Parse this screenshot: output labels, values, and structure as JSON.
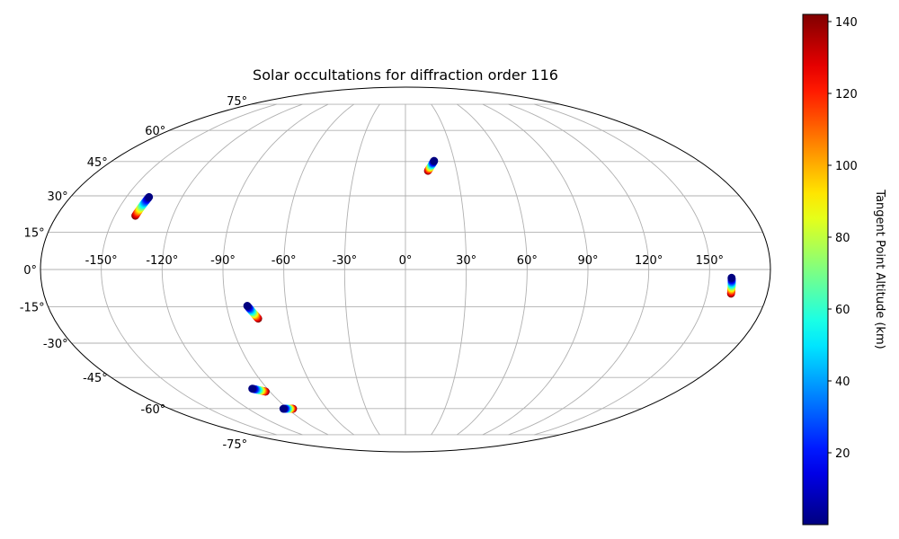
{
  "chart_data": {
    "type": "scatter",
    "projection": "mollweide",
    "title": "Solar occultations for diffraction order 116",
    "grid": true,
    "lon_ticks": [
      -150,
      -120,
      -90,
      -60,
      -30,
      0,
      30,
      60,
      90,
      120,
      150
    ],
    "lon_tick_labels": [
      "-150°",
      "-120°",
      "-90°",
      "-60°",
      "-30°",
      "0°",
      "30°",
      "60°",
      "90°",
      "120°",
      "150°"
    ],
    "lat_ticks": [
      -75,
      -60,
      -45,
      -30,
      -15,
      0,
      15,
      30,
      45,
      60,
      75
    ],
    "lat_tick_labels": [
      "-75°",
      "-60°",
      "-45°",
      "-30°",
      "-15°",
      "0°",
      "15°",
      "30°",
      "45°",
      "60°",
      "75°"
    ],
    "colorbar": {
      "label": "Tangent Point Altitude (km)",
      "colormap": "jet",
      "range": [
        0,
        142
      ],
      "ticks": [
        20,
        40,
        60,
        80,
        100,
        120,
        140
      ],
      "tick_labels": [
        "20",
        "40",
        "60",
        "80",
        "100",
        "120",
        "140"
      ],
      "placement": "right"
    },
    "tracks": [
      {
        "start": {
          "lon": -137.8,
          "lat": 29.5
        },
        "end": {
          "lon": -139.4,
          "lat": 21.7
        },
        "altitude_range": [
          0,
          142
        ]
      },
      {
        "start": {
          "lon": 17.6,
          "lat": 45.3
        },
        "end": {
          "lon": 13.2,
          "lat": 40.8
        },
        "altitude_range": [
          0,
          142
        ]
      },
      {
        "start": {
          "lon": -79.6,
          "lat": -14.6
        },
        "end": {
          "lon": -75.4,
          "lat": -19.8
        },
        "altitude_range": [
          0,
          142
        ]
      },
      {
        "start": {
          "lon": 161.0,
          "lat": -3.3
        },
        "end": {
          "lon": 162.0,
          "lat": -9.7
        },
        "altitude_range": [
          0,
          142
        ]
      },
      {
        "start": {
          "lon": -99.8,
          "lat": -50.2
        },
        "end": {
          "lon": -92.8,
          "lat": -51.6
        },
        "altitude_range": [
          0,
          142
        ]
      },
      {
        "start": {
          "lon": -93.2,
          "lat": -60.1
        },
        "end": {
          "lon": -85.8,
          "lat": -60.1
        },
        "altitude_range": [
          0,
          142
        ]
      }
    ]
  }
}
